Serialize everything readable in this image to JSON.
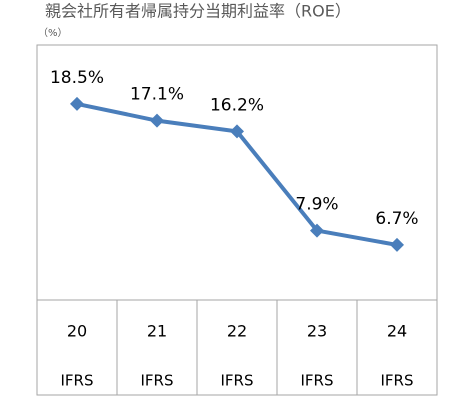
{
  "chart_data": {
    "type": "line",
    "title": "親会社所有者帰属持分当期利益率（ROE）",
    "unit_label": "（%）",
    "categories": [
      "20",
      "21",
      "22",
      "23",
      "24"
    ],
    "category_sublabels": [
      "IFRS",
      "IFRS",
      "IFRS",
      "IFRS",
      "IFRS"
    ],
    "series": [
      {
        "color": "#4a7ebb",
        "values": [
          18.5,
          17.1,
          16.2,
          7.9,
          6.7
        ],
        "value_labels": [
          "18.5%",
          "17.1%",
          "16.2%",
          "7.9%",
          "6.7%"
        ]
      }
    ]
  }
}
